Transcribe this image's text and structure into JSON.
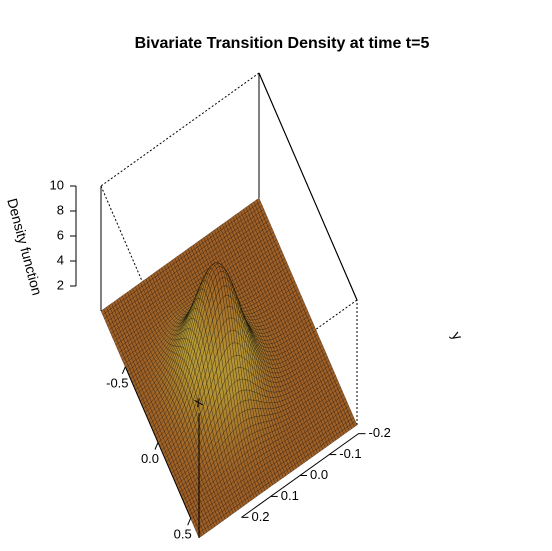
{
  "chart_data": {
    "type": "surface",
    "title": "Bivariate Transition Density at time t=5",
    "xlabel": "x",
    "ylabel": "y",
    "zlabel": "Density function",
    "xlim": [
      -0.75,
      0.75
    ],
    "ylim": [
      -0.27,
      0.27
    ],
    "zlim": [
      0,
      10
    ],
    "x_ticks": [
      "-0.5",
      "0.0",
      "0.5"
    ],
    "y_ticks": [
      "-0.2",
      "-0.1",
      "0.0",
      "0.1",
      "0.2"
    ],
    "z_ticks": [
      "2",
      "4",
      "6",
      "8",
      "10"
    ],
    "x_tick_values": [
      -0.5,
      0.0,
      0.5
    ],
    "y_tick_values": [
      -0.2,
      -0.1,
      0.0,
      0.1,
      0.2
    ],
    "z_tick_values": [
      2,
      4,
      6,
      8,
      10
    ],
    "surface": {
      "peak_x": 0.05,
      "peak_y": 0.05,
      "peak_density": 9.5,
      "sd_x": 0.2,
      "sd_y": 0.07,
      "grid_lines": 60
    },
    "colors": {
      "low": "#8a2a18",
      "mid": "#a8702a",
      "high": "#cdd040",
      "mesh": "#000000"
    }
  }
}
